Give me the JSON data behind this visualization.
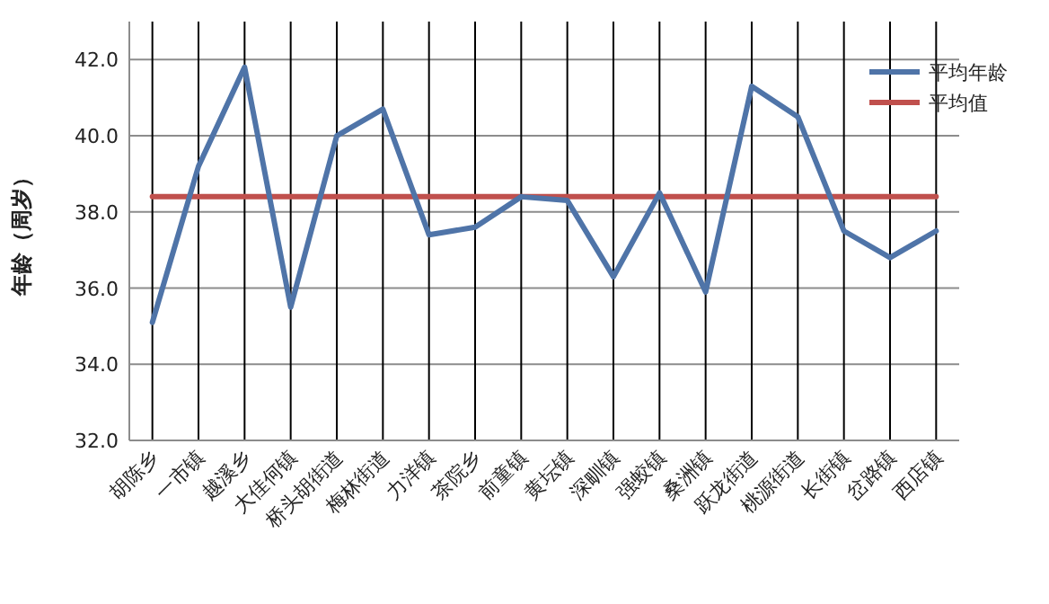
{
  "chart_data": {
    "type": "line",
    "ylabel": "年龄（周岁）",
    "categories": [
      "胡陈乡",
      "一市镇",
      "越溪乡",
      "大佳何镇",
      "桥头胡街道",
      "梅林街道",
      "力洋镇",
      "茶院乡",
      "前童镇",
      "黄坛镇",
      "深甽镇",
      "强蛟镇",
      "桑洲镇",
      "跃龙街道",
      "桃源街道",
      "长街镇",
      "岔路镇",
      "西店镇"
    ],
    "series": [
      {
        "name": "平均年龄",
        "color": "#4f74a8",
        "values": [
          35.1,
          39.2,
          41.8,
          35.5,
          40.0,
          40.7,
          37.4,
          37.6,
          38.4,
          38.3,
          36.3,
          38.5,
          35.9,
          41.3,
          40.5,
          37.5,
          36.8,
          37.5
        ]
      },
      {
        "name": "平均值",
        "color": "#c0504d",
        "values": [
          38.4,
          38.4,
          38.4,
          38.4,
          38.4,
          38.4,
          38.4,
          38.4,
          38.4,
          38.4,
          38.4,
          38.4,
          38.4,
          38.4,
          38.4,
          38.4,
          38.4,
          38.4
        ]
      }
    ],
    "ylim": [
      32,
      43
    ],
    "yticks": [
      {
        "value": 32,
        "label": "32.0"
      },
      {
        "value": 34,
        "label": "34.0"
      },
      {
        "value": 36,
        "label": "36.0"
      },
      {
        "value": 38,
        "label": "38.0"
      },
      {
        "value": 40,
        "label": "40.0"
      },
      {
        "value": 42,
        "label": "42.0"
      }
    ],
    "grid": true,
    "legend": "top right",
    "marker": "none",
    "line_style": "solid"
  }
}
